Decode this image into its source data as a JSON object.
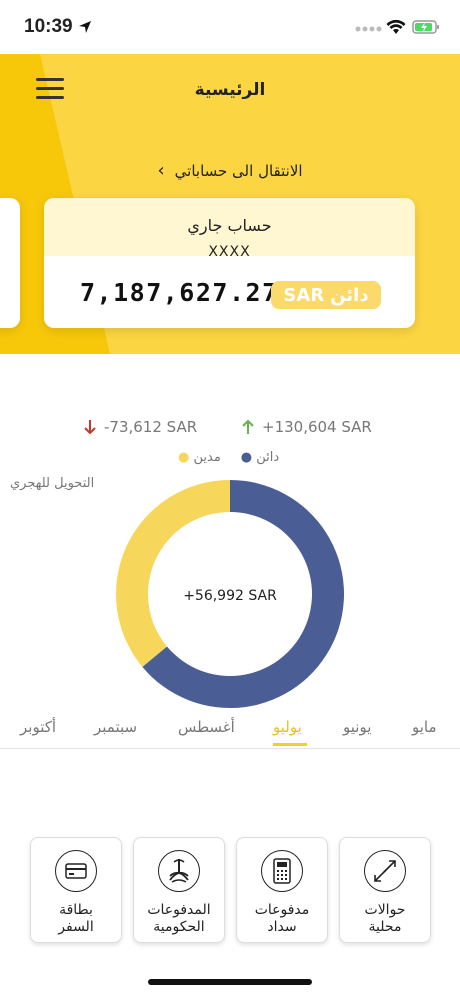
{
  "status_bar": {
    "time": "10:39"
  },
  "header": {
    "title": "الرئيسية",
    "accounts_link": "الانتقال الى حساباتي"
  },
  "account_card": {
    "type": "حساب جاري",
    "number": "XXXX",
    "balance": "7,187,627.27",
    "currency": "SAR",
    "balance_status": "دائن"
  },
  "summary": {
    "debit_total": "-73,612 SAR",
    "credit_total": "+130,604 SAR",
    "legend_credit": "دائن",
    "legend_debit": "مدين",
    "hijri_toggle": "التحويل للهجري",
    "net": "+56,992 SAR"
  },
  "chart_data": {
    "type": "pie",
    "categories": [
      "دائن",
      "مدين"
    ],
    "values": [
      130604,
      73612
    ],
    "colors": [
      "#4a5e95",
      "#f6d75c"
    ],
    "center_label": "+56,992 SAR"
  },
  "months": [
    "مايو",
    "يونيو",
    "يوليو",
    "أغسطس",
    "سبتمبر",
    "أكتوبر"
  ],
  "active_month": "يوليو",
  "actions": [
    {
      "label_line1": "حوالات",
      "label_line2": "محلية",
      "icon": "transfer-arrows-icon"
    },
    {
      "label_line1": "مدفوعات",
      "label_line2": "سداد",
      "icon": "bill-calculator-icon"
    },
    {
      "label_line1": "المدفوعات",
      "label_line2": "الحكومية",
      "icon": "government-emblem-icon"
    },
    {
      "label_line1": "بطاقة",
      "label_line2": "السفر",
      "icon": "card-icon"
    }
  ]
}
